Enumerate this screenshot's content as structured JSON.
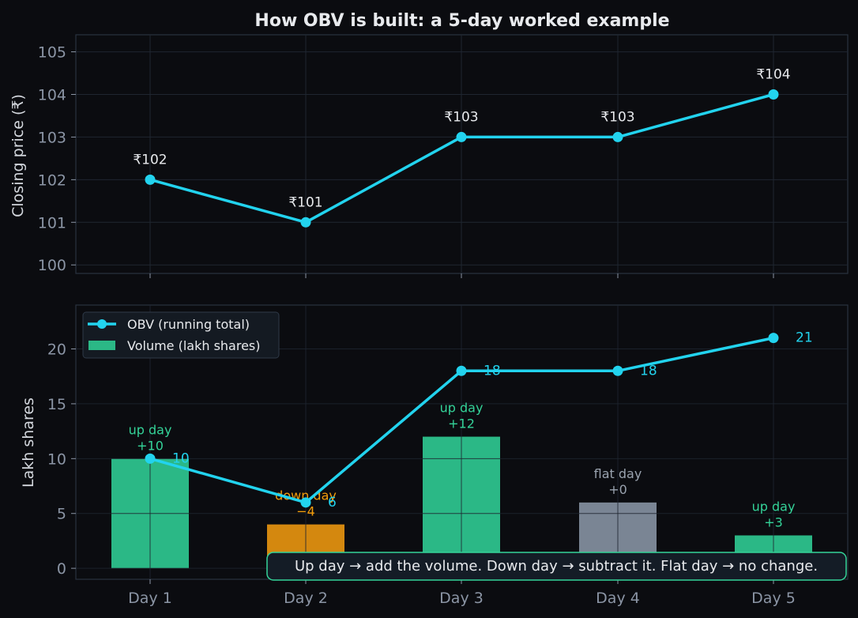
{
  "chart_data": [
    {
      "type": "line",
      "title": "How OBV is built: a 5-day worked example",
      "ylabel": "Closing price (₹)",
      "categories": [
        "Day 1",
        "Day 2",
        "Day 3",
        "Day 4",
        "Day 5"
      ],
      "ylim": [
        99.8,
        105.4
      ],
      "yticks": [
        100,
        101,
        102,
        103,
        104,
        105
      ],
      "grid": true,
      "series": [
        {
          "values": [
            102,
            101,
            103,
            103,
            104
          ],
          "color": "#22d3ee"
        }
      ],
      "point_labels": [
        "₹102",
        "₹101",
        "₹103",
        "₹103",
        "₹104"
      ]
    },
    {
      "type": "bar",
      "ylabel": "Lakh shares",
      "categories": [
        "Day 1",
        "Day 2",
        "Day 3",
        "Day 4",
        "Day 5"
      ],
      "ylim": [
        -1,
        24
      ],
      "yticks": [
        0,
        5,
        10,
        15,
        20
      ],
      "grid": true,
      "legend_position": "top-left",
      "series": [
        {
          "name": "OBV (running total)",
          "type": "line",
          "values": [
            10,
            6,
            18,
            18,
            21
          ],
          "color": "#22d3ee"
        },
        {
          "name": "Volume (lakh shares)",
          "type": "bar",
          "values": [
            10,
            4,
            12,
            6,
            3
          ]
        }
      ],
      "bar_colors": [
        "#2bb886",
        "#d4880f",
        "#2bb886",
        "#7a8594",
        "#2bb886"
      ],
      "obv_labels": [
        "10",
        "6",
        "18",
        "18",
        "21"
      ],
      "day_annotations": [
        {
          "kind": "up day",
          "change": "+10",
          "color": "#34d399"
        },
        {
          "kind": "down day",
          "change": "−4",
          "color": "#f59e0b"
        },
        {
          "kind": "up day",
          "change": "+12",
          "color": "#34d399"
        },
        {
          "kind": "flat day",
          "change": "+0",
          "color": "#9aa3af"
        },
        {
          "kind": "up day",
          "change": "+3",
          "color": "#34d399"
        }
      ],
      "note": "Up day → add the volume. Down day → subtract it. Flat day → no change."
    }
  ],
  "colors": {
    "background": "#0b0c10",
    "axes_border": "#2a3340",
    "grid": "#1f2630",
    "tick": "#8b95a5",
    "accent": "#22d3ee",
    "note_border": "#34d399",
    "note_bg": "#141c26"
  }
}
